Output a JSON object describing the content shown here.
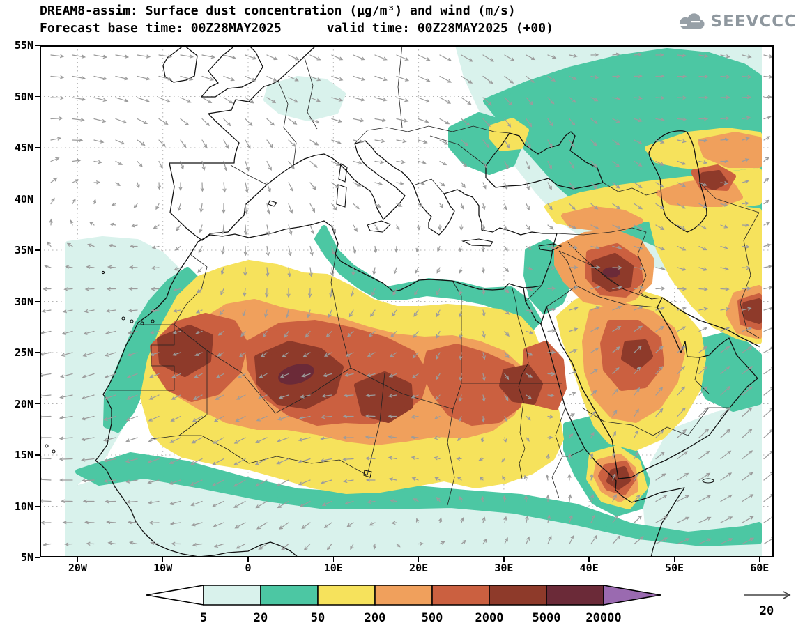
{
  "header": {
    "title_line1": "DREAM8-assim: Surface dust concentration (µg/m³) and wind (m/s)",
    "title_line2": "Forecast base time: 00Z28MAY2025      valid time: 00Z28MAY2025 (+00)",
    "logo_text": "SEEVCCC"
  },
  "axes": {
    "lat_labels": [
      "55N",
      "50N",
      "45N",
      "40N",
      "35N",
      "30N",
      "25N",
      "20N",
      "15N",
      "10N",
      "5N"
    ],
    "lon_labels": [
      "20W",
      "10W",
      "0",
      "10E",
      "20E",
      "30E",
      "40E",
      "50E",
      "60E"
    ]
  },
  "legend": {
    "levels": [
      "5",
      "20",
      "50",
      "200",
      "500",
      "2000",
      "5000",
      "20000"
    ],
    "segment_colors": [
      "#d9f2ec",
      "#4cc7a3",
      "#f6e25c",
      "#f0a05c",
      "#cb6040",
      "#8e3a2a",
      "#6b2a38"
    ],
    "below_min_color": "#ffffff",
    "above_max_color": "#9a6ab0"
  },
  "wind_reference": {
    "label": "20"
  },
  "field_palette": {
    "pale_cyan": "#d9f2ec",
    "teal": "#4cc7a3",
    "yellow": "#f6e25c",
    "orange": "#f0a05c",
    "brick": "#cb6040",
    "dark_red_brown": "#8e3a2a",
    "maroon": "#6b2a38",
    "wind_arrow_gray": "#9c9c9c"
  }
}
